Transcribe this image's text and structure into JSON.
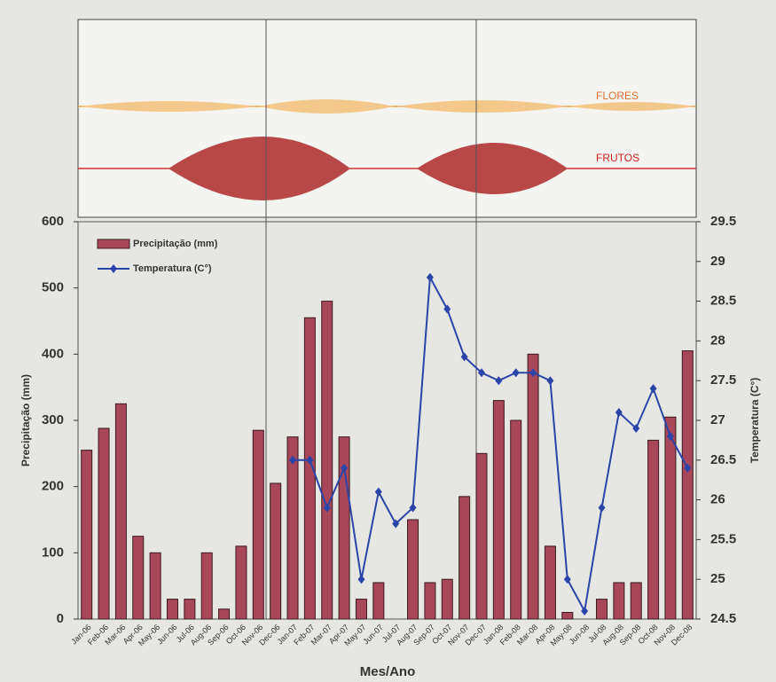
{
  "chart_data": {
    "type": "bar-line",
    "phenology_labels": [
      "FLORES",
      "FRUTOS"
    ],
    "x_label": "Mes/Ano",
    "y_label": "Precipitação (mm)",
    "y2_label": "Temperatura (C°)",
    "categories": [
      "Jan-06",
      "Feb-06",
      "Mar-06",
      "Apr-06",
      "May-06",
      "Jun-06",
      "Jul-06",
      "Aug-06",
      "Sep-06",
      "Oct-06",
      "Nov-06",
      "Dec-06",
      "Jan-07",
      "Feb-07",
      "Mar-07",
      "Apr-07",
      "May-07",
      "Jun-07",
      "Jul-07",
      "Aug-07",
      "Sep-07",
      "Oct-07",
      "Nov-07",
      "Dec-07",
      "Jan-08",
      "Feb-08",
      "Mar-08",
      "Apr-08",
      "May-08",
      "Jun-08",
      "Jul-08",
      "Aug-08",
      "Sep-08",
      "Oct-08",
      "Nov-08",
      "Dec-08"
    ],
    "series": [
      {
        "name": "Precipitação (mm)",
        "type": "bar",
        "color": "#a8475a",
        "values": [
          255,
          288,
          325,
          125,
          100,
          30,
          30,
          100,
          15,
          110,
          285,
          205,
          275,
          455,
          480,
          275,
          30,
          55,
          0,
          150,
          55,
          60,
          185,
          250,
          330,
          300,
          400,
          110,
          10,
          0,
          30,
          55,
          55,
          270,
          305,
          405
        ]
      },
      {
        "name": "Temperatura (C°)",
        "type": "line",
        "axis": "y2",
        "color": "#2a44a8",
        "values": [
          null,
          null,
          null,
          null,
          null,
          null,
          null,
          null,
          null,
          null,
          null,
          null,
          26.5,
          26.5,
          25.9,
          26.4,
          25.0,
          26.1,
          25.7,
          25.9,
          28.8,
          28.4,
          27.8,
          27.6,
          27.5,
          27.6,
          27.6,
          27.5,
          25.0,
          24.6,
          25.9,
          27.1,
          26.9,
          27.4,
          26.8,
          26.4
        ]
      }
    ],
    "ylim": [
      0,
      600
    ],
    "yticks": [
      0,
      100,
      200,
      300,
      400,
      500,
      600
    ],
    "y2lim": [
      24.5,
      29.5
    ],
    "y2ticks": [
      24.5,
      25,
      25.5,
      26,
      26.5,
      27,
      27.5,
      28,
      28.5,
      29,
      29.5
    ],
    "legend": "upper left"
  }
}
